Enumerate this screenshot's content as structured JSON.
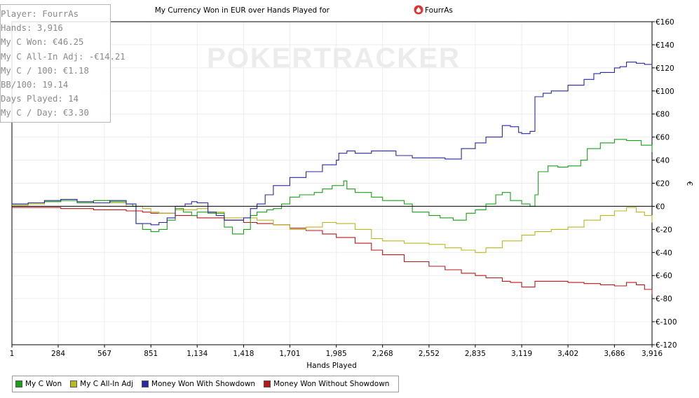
{
  "chart_data": {
    "type": "line",
    "title": "My Currency Won in EUR over Hands Played for",
    "title_player": "FourrAs",
    "xlabel": "Hands Played",
    "ylabel": "€",
    "xlim": [
      1,
      3916
    ],
    "ylim": [
      -120,
      160
    ],
    "x_ticks": [
      1,
      284,
      567,
      851,
      1134,
      1418,
      1701,
      1985,
      2268,
      2552,
      2835,
      3119,
      3402,
      3686,
      3916
    ],
    "x_tick_labels": [
      "1",
      "284",
      "567",
      "851",
      "1,134",
      "1,418",
      "1,701",
      "1,985",
      "2,268",
      "2,552",
      "2,835",
      "3,119",
      "3,402",
      "3,686",
      "3,916"
    ],
    "y_ticks": [
      -120,
      -100,
      -80,
      -60,
      -40,
      -20,
      0,
      20,
      40,
      60,
      80,
      100,
      120,
      140,
      160
    ],
    "y_tick_labels": [
      "€-120",
      "€-100",
      "€-80",
      "€-60",
      "€-40",
      "€-20",
      "€0",
      "€20",
      "€40",
      "€60",
      "€80",
      "€100",
      "€120",
      "€140",
      "€160"
    ],
    "grid": true,
    "legend_position": "bottom-left",
    "series": [
      {
        "name": "My C Won",
        "color": "#18a018",
        "points": [
          [
            1,
            2
          ],
          [
            100,
            3
          ],
          [
            200,
            4
          ],
          [
            300,
            5
          ],
          [
            400,
            3
          ],
          [
            500,
            5
          ],
          [
            600,
            4
          ],
          [
            700,
            2
          ],
          [
            740,
            0
          ],
          [
            760,
            -15
          ],
          [
            800,
            -20
          ],
          [
            851,
            -22
          ],
          [
            900,
            -20
          ],
          [
            950,
            -12
          ],
          [
            1000,
            -2
          ],
          [
            1050,
            -5
          ],
          [
            1100,
            -8
          ],
          [
            1134,
            -5
          ],
          [
            1200,
            -6
          ],
          [
            1300,
            -18
          ],
          [
            1350,
            -24
          ],
          [
            1418,
            -20
          ],
          [
            1460,
            -8
          ],
          [
            1500,
            -5
          ],
          [
            1560,
            -3
          ],
          [
            1600,
            -2
          ],
          [
            1650,
            2
          ],
          [
            1701,
            8
          ],
          [
            1760,
            10
          ],
          [
            1850,
            12
          ],
          [
            1900,
            15
          ],
          [
            1960,
            18
          ],
          [
            2030,
            22
          ],
          [
            2050,
            15
          ],
          [
            2100,
            12
          ],
          [
            2200,
            8
          ],
          [
            2268,
            5
          ],
          [
            2350,
            5
          ],
          [
            2400,
            2
          ],
          [
            2450,
            -5
          ],
          [
            2552,
            -8
          ],
          [
            2620,
            -10
          ],
          [
            2700,
            -12
          ],
          [
            2780,
            -6
          ],
          [
            2835,
            -3
          ],
          [
            2900,
            2
          ],
          [
            2960,
            10
          ],
          [
            3000,
            12
          ],
          [
            3050,
            5
          ],
          [
            3119,
            2
          ],
          [
            3170,
            0
          ],
          [
            3200,
            10
          ],
          [
            3220,
            30
          ],
          [
            3280,
            35
          ],
          [
            3340,
            34
          ],
          [
            3402,
            35
          ],
          [
            3480,
            40
          ],
          [
            3520,
            50
          ],
          [
            3600,
            55
          ],
          [
            3686,
            58
          ],
          [
            3760,
            57
          ],
          [
            3850,
            53
          ],
          [
            3916,
            47
          ]
        ]
      },
      {
        "name": "My C All-In Adj",
        "color": "#b8b820",
        "points": [
          [
            1,
            1
          ],
          [
            100,
            2
          ],
          [
            200,
            4
          ],
          [
            300,
            6
          ],
          [
            400,
            4
          ],
          [
            500,
            5
          ],
          [
            600,
            3
          ],
          [
            700,
            0
          ],
          [
            800,
            -2
          ],
          [
            851,
            -5
          ],
          [
            900,
            -6
          ],
          [
            1000,
            -3
          ],
          [
            1134,
            -2
          ],
          [
            1200,
            -5
          ],
          [
            1300,
            -10
          ],
          [
            1418,
            -10
          ],
          [
            1500,
            -12
          ],
          [
            1600,
            -16
          ],
          [
            1701,
            -20
          ],
          [
            1800,
            -18
          ],
          [
            1900,
            -14
          ],
          [
            1985,
            -15
          ],
          [
            2100,
            -20
          ],
          [
            2200,
            -28
          ],
          [
            2268,
            -30
          ],
          [
            2400,
            -32
          ],
          [
            2552,
            -33
          ],
          [
            2650,
            -36
          ],
          [
            2750,
            -38
          ],
          [
            2835,
            -40
          ],
          [
            2900,
            -36
          ],
          [
            3000,
            -30
          ],
          [
            3119,
            -25
          ],
          [
            3200,
            -22
          ],
          [
            3300,
            -20
          ],
          [
            3402,
            -18
          ],
          [
            3500,
            -12
          ],
          [
            3600,
            -8
          ],
          [
            3686,
            -4
          ],
          [
            3760,
            -1
          ],
          [
            3820,
            -5
          ],
          [
            3870,
            -8
          ],
          [
            3916,
            -14
          ]
        ]
      },
      {
        "name": "Money Won With Showdown",
        "color": "#2828a0",
        "points": [
          [
            1,
            2
          ],
          [
            100,
            3
          ],
          [
            200,
            5
          ],
          [
            300,
            6
          ],
          [
            400,
            4
          ],
          [
            500,
            3
          ],
          [
            600,
            5
          ],
          [
            700,
            2
          ],
          [
            760,
            -15
          ],
          [
            851,
            -16
          ],
          [
            900,
            -14
          ],
          [
            950,
            -10
          ],
          [
            1000,
            0
          ],
          [
            1060,
            2
          ],
          [
            1100,
            4
          ],
          [
            1134,
            3
          ],
          [
            1200,
            -5
          ],
          [
            1250,
            -8
          ],
          [
            1300,
            -12
          ],
          [
            1418,
            -10
          ],
          [
            1460,
            -2
          ],
          [
            1500,
            2
          ],
          [
            1550,
            10
          ],
          [
            1600,
            18
          ],
          [
            1701,
            25
          ],
          [
            1800,
            30
          ],
          [
            1900,
            36
          ],
          [
            1985,
            40
          ],
          [
            2000,
            46
          ],
          [
            2050,
            48
          ],
          [
            2100,
            46
          ],
          [
            2200,
            48
          ],
          [
            2268,
            48
          ],
          [
            2350,
            44
          ],
          [
            2450,
            42
          ],
          [
            2552,
            42
          ],
          [
            2650,
            41
          ],
          [
            2750,
            50
          ],
          [
            2835,
            55
          ],
          [
            2900,
            60
          ],
          [
            3000,
            70
          ],
          [
            3050,
            69
          ],
          [
            3100,
            64
          ],
          [
            3119,
            63
          ],
          [
            3170,
            65
          ],
          [
            3200,
            95
          ],
          [
            3250,
            98
          ],
          [
            3300,
            100
          ],
          [
            3402,
            105
          ],
          [
            3500,
            110
          ],
          [
            3560,
            115
          ],
          [
            3600,
            116
          ],
          [
            3686,
            120
          ],
          [
            3720,
            121
          ],
          [
            3760,
            125
          ],
          [
            3820,
            124
          ],
          [
            3870,
            123
          ],
          [
            3916,
            122
          ]
        ]
      },
      {
        "name": "Money Won Without Showdown",
        "color": "#b81818",
        "points": [
          [
            1,
            -1
          ],
          [
            100,
            -1
          ],
          [
            200,
            -1
          ],
          [
            300,
            -2
          ],
          [
            400,
            -2
          ],
          [
            500,
            -3
          ],
          [
            600,
            -3
          ],
          [
            700,
            -4
          ],
          [
            800,
            -5
          ],
          [
            851,
            -6
          ],
          [
            1000,
            -8
          ],
          [
            1134,
            -10
          ],
          [
            1300,
            -12
          ],
          [
            1418,
            -14
          ],
          [
            1500,
            -15
          ],
          [
            1600,
            -16
          ],
          [
            1701,
            -19
          ],
          [
            1800,
            -21
          ],
          [
            1900,
            -24
          ],
          [
            1985,
            -27
          ],
          [
            2100,
            -32
          ],
          [
            2200,
            -38
          ],
          [
            2268,
            -42
          ],
          [
            2400,
            -48
          ],
          [
            2552,
            -52
          ],
          [
            2650,
            -55
          ],
          [
            2750,
            -58
          ],
          [
            2835,
            -60
          ],
          [
            2900,
            -62
          ],
          [
            3000,
            -65
          ],
          [
            3050,
            -66
          ],
          [
            3119,
            -70
          ],
          [
            3200,
            -65
          ],
          [
            3300,
            -65
          ],
          [
            3402,
            -66
          ],
          [
            3500,
            -67
          ],
          [
            3600,
            -68
          ],
          [
            3686,
            -69
          ],
          [
            3760,
            -66
          ],
          [
            3820,
            -68
          ],
          [
            3870,
            -72
          ],
          [
            3916,
            -76
          ]
        ]
      }
    ]
  },
  "stats": {
    "player": "Player: FourrAs",
    "hands": "Hands: 3,916",
    "won": "My C Won: €46.25",
    "allin": "My C All-In Adj: -€14.21",
    "per100": "My C / 100: €1.18",
    "bb100": "BB/100: 19.14",
    "days": "Days Played: 14",
    "perday": "My C / Day: €3.30"
  },
  "watermark": "POKERTRACKER",
  "legend": {
    "items": [
      "My C Won",
      "My C All-In Adj",
      "Money Won With Showdown",
      "Money Won Without Showdown"
    ],
    "colors": [
      "#18a018",
      "#b8b820",
      "#2828a0",
      "#b81818"
    ]
  }
}
